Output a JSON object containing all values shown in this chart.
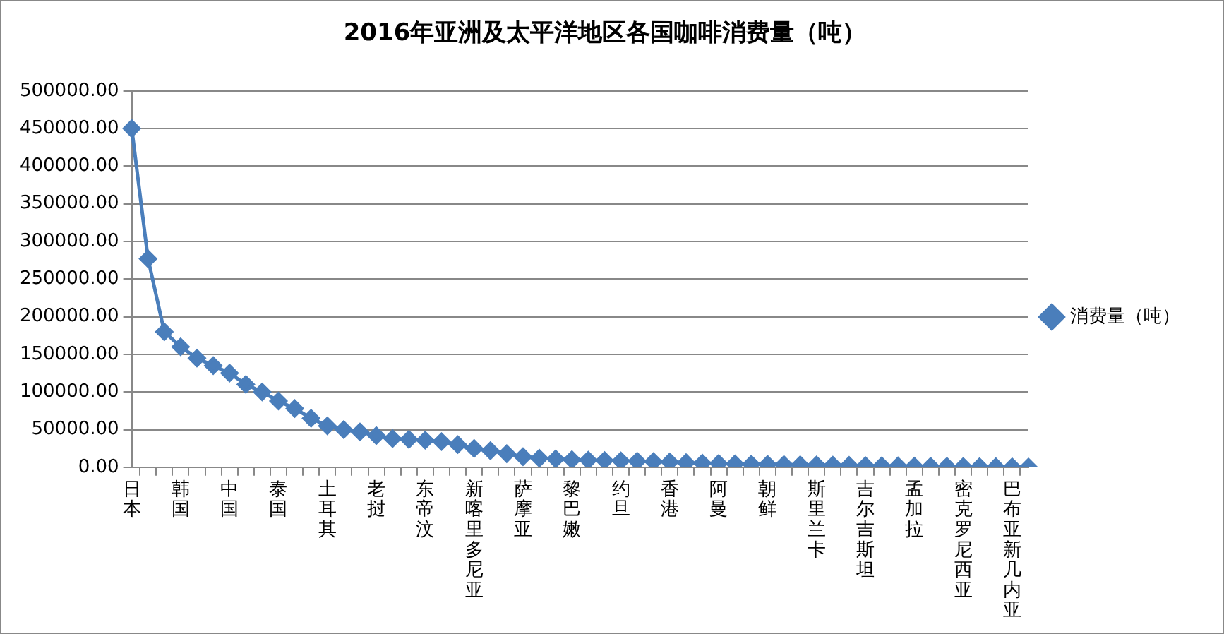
{
  "chart_data": {
    "type": "line",
    "title": "2016年亚洲及太平洋地区各国咖啡消费量（吨）",
    "categories": [
      "日本",
      null,
      null,
      "韩国",
      null,
      null,
      "中国",
      null,
      null,
      "泰国",
      null,
      null,
      "土耳其",
      null,
      null,
      "老挝",
      null,
      null,
      "东帝汶",
      null,
      null,
      "新喀里多尼亚",
      null,
      null,
      "萨摩亚",
      null,
      null,
      "黎巴嫩",
      null,
      null,
      "约旦",
      null,
      null,
      "香港",
      null,
      null,
      "阿曼",
      null,
      null,
      "朝鲜",
      null,
      null,
      "斯里兰卡",
      null,
      null,
      "吉尔吉斯坦",
      null,
      null,
      "孟加拉",
      null,
      null,
      "密克罗尼西亚",
      null,
      null,
      "巴布亚新几内亚",
      null
    ],
    "series": [
      {
        "name": "消费量（吨）",
        "color": "#4a7ebb",
        "values": [
          450000,
          277000,
          180000,
          160000,
          145000,
          135000,
          125000,
          110000,
          100000,
          88000,
          78000,
          65000,
          55000,
          50000,
          47000,
          42000,
          38000,
          37000,
          36000,
          34000,
          30000,
          25000,
          22000,
          18000,
          14000,
          12000,
          11000,
          10000,
          9500,
          9000,
          8500,
          8000,
          7500,
          7000,
          6000,
          5500,
          5000,
          4500,
          4000,
          3800,
          3500,
          3200,
          3000,
          2800,
          2500,
          2200,
          2000,
          1800,
          1500,
          1300,
          1100,
          1000,
          800,
          600,
          400,
          200
        ]
      }
    ],
    "ylim": [
      0,
      500000
    ],
    "yticks": [
      {
        "value": 0,
        "label": "0.00"
      },
      {
        "value": 50000,
        "label": "50000.00"
      },
      {
        "value": 100000,
        "label": "100000.00"
      },
      {
        "value": 150000,
        "label": "150000.00"
      },
      {
        "value": 200000,
        "label": "200000.00"
      },
      {
        "value": 250000,
        "label": "250000.00"
      },
      {
        "value": 300000,
        "label": "300000.00"
      },
      {
        "value": 350000,
        "label": "350000.00"
      },
      {
        "value": 400000,
        "label": "400000.00"
      },
      {
        "value": 450000,
        "label": "450000.00"
      },
      {
        "value": 500000,
        "label": "500000.00"
      }
    ],
    "grid": "y",
    "legend": "right",
    "marker": "diamond",
    "line_style": "solid"
  }
}
